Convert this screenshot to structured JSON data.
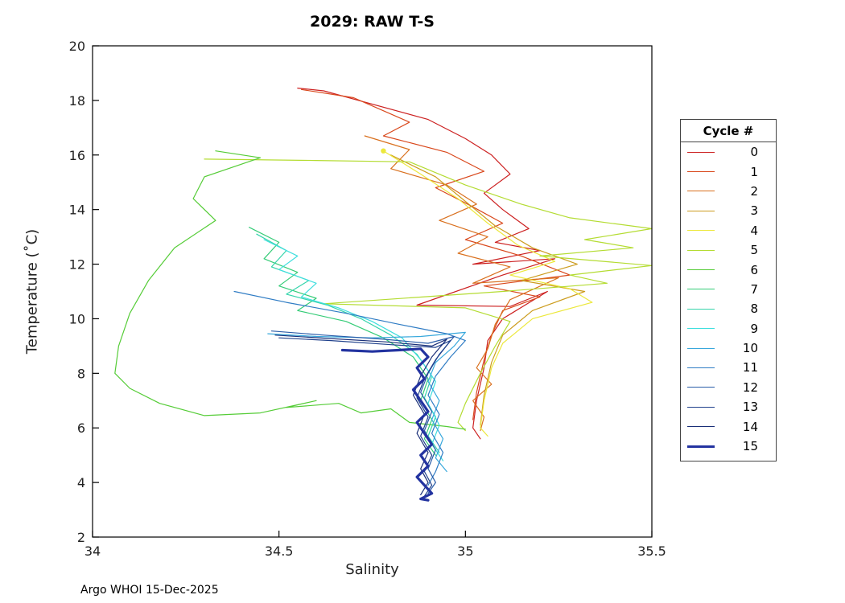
{
  "title": "2029: RAW T-S",
  "footer": "Argo WHOI 15-Dec-2025",
  "chart_data": {
    "type": "line",
    "title": "2029: RAW T-S",
    "xlabel": "Salinity",
    "ylabel": "Temperature (˚C)",
    "xlim": [
      34,
      35.5
    ],
    "ylim": [
      2,
      20
    ],
    "xticks": [
      34,
      34.5,
      35,
      35.5
    ],
    "yticks": [
      2,
      4,
      6,
      8,
      10,
      12,
      14,
      16,
      18,
      20
    ],
    "grid": false,
    "legend_title": "Cycle #",
    "legend_position": "right-outside",
    "axis_color": "#000000",
    "series": [
      {
        "name": "0",
        "color": "#cc2020",
        "width": 1.2,
        "points": [
          [
            34.55,
            18.45
          ],
          [
            34.62,
            18.35
          ],
          [
            34.9,
            17.3
          ],
          [
            35.0,
            16.6
          ],
          [
            35.07,
            16.0
          ],
          [
            35.12,
            15.3
          ],
          [
            35.05,
            14.6
          ],
          [
            35.1,
            14.0
          ],
          [
            35.17,
            13.3
          ],
          [
            35.08,
            12.8
          ],
          [
            35.2,
            12.5
          ],
          [
            35.02,
            12.0
          ],
          [
            35.24,
            12.2
          ],
          [
            35.1,
            11.6
          ],
          [
            34.87,
            10.5
          ],
          [
            35.12,
            10.45
          ],
          [
            35.22,
            11.0
          ],
          [
            35.1,
            10.0
          ],
          [
            35.06,
            9.2
          ],
          [
            35.05,
            8.2
          ],
          [
            35.03,
            7.0
          ],
          [
            35.02,
            6.0
          ],
          [
            35.04,
            5.6
          ]
        ]
      },
      {
        "name": "1",
        "color": "#d9481c",
        "width": 1.2,
        "points": [
          [
            34.56,
            18.4
          ],
          [
            34.7,
            18.1
          ],
          [
            34.85,
            17.2
          ],
          [
            34.78,
            16.7
          ],
          [
            34.95,
            16.1
          ],
          [
            35.05,
            15.4
          ],
          [
            34.92,
            14.8
          ],
          [
            35.02,
            14.1
          ],
          [
            35.1,
            13.5
          ],
          [
            35.0,
            12.9
          ],
          [
            35.15,
            12.3
          ],
          [
            35.28,
            11.6
          ],
          [
            35.05,
            11.2
          ],
          [
            35.2,
            10.8
          ],
          [
            35.1,
            10.3
          ],
          [
            35.07,
            9.4
          ],
          [
            35.05,
            8.5
          ],
          [
            35.03,
            7.3
          ],
          [
            35.02,
            6.3
          ]
        ]
      },
      {
        "name": "2",
        "color": "#d9701e",
        "width": 1.2,
        "points": [
          [
            34.73,
            16.7
          ],
          [
            34.85,
            16.2
          ],
          [
            34.8,
            15.5
          ],
          [
            34.95,
            14.9
          ],
          [
            35.03,
            14.2
          ],
          [
            34.93,
            13.6
          ],
          [
            35.06,
            13.0
          ],
          [
            34.98,
            12.4
          ],
          [
            35.12,
            11.9
          ],
          [
            35.02,
            11.3
          ],
          [
            35.25,
            11.5
          ],
          [
            35.12,
            10.7
          ],
          [
            35.08,
            9.8
          ],
          [
            35.06,
            8.9
          ],
          [
            35.03,
            8.2
          ],
          [
            35.07,
            7.6
          ],
          [
            35.02,
            7.0
          ],
          [
            35.05,
            6.4
          ],
          [
            35.04,
            5.9
          ]
        ]
      },
      {
        "name": "3",
        "color": "#cc9c1e",
        "width": 1.2,
        "points": [
          [
            34.8,
            16.0
          ],
          [
            34.92,
            15.2
          ],
          [
            35.0,
            14.3
          ],
          [
            35.08,
            13.4
          ],
          [
            35.18,
            12.6
          ],
          [
            35.3,
            12.0
          ],
          [
            35.15,
            11.4
          ],
          [
            35.32,
            11.0
          ],
          [
            35.18,
            10.3
          ],
          [
            35.1,
            9.4
          ],
          [
            35.07,
            8.4
          ],
          [
            35.05,
            7.2
          ],
          [
            35.04,
            6.1
          ]
        ]
      },
      {
        "name": "4",
        "color": "#ece83c",
        "width": 1.2,
        "marker": [
          34.78,
          16.15
        ],
        "points": [
          [
            34.78,
            16.15
          ],
          [
            34.88,
            15.3
          ],
          [
            34.98,
            14.4
          ],
          [
            35.06,
            13.5
          ],
          [
            35.14,
            12.7
          ],
          [
            35.24,
            12.1
          ],
          [
            35.12,
            11.6
          ],
          [
            35.28,
            11.1
          ],
          [
            35.34,
            10.6
          ],
          [
            35.18,
            10.0
          ],
          [
            35.1,
            9.1
          ],
          [
            35.07,
            8.2
          ],
          [
            35.05,
            7.0
          ],
          [
            35.04,
            6.0
          ],
          [
            35.06,
            5.7
          ]
        ]
      },
      {
        "name": "5",
        "color": "#b4dc32",
        "width": 1.2,
        "points": [
          [
            34.3,
            15.85
          ],
          [
            34.6,
            15.8
          ],
          [
            34.85,
            15.75
          ],
          [
            35.0,
            14.9
          ],
          [
            35.15,
            14.2
          ],
          [
            35.28,
            13.7
          ],
          [
            35.5,
            13.3
          ],
          [
            35.32,
            12.9
          ],
          [
            35.45,
            12.6
          ],
          [
            35.2,
            12.3
          ],
          [
            35.5,
            11.95
          ],
          [
            35.28,
            11.6
          ],
          [
            35.38,
            11.3
          ],
          [
            35.1,
            11.0
          ],
          [
            34.62,
            10.55
          ],
          [
            35.0,
            10.4
          ],
          [
            35.12,
            9.9
          ],
          [
            35.08,
            9.0
          ],
          [
            35.04,
            8.0
          ],
          [
            35.0,
            6.9
          ],
          [
            34.98,
            6.2
          ],
          [
            35.0,
            5.9
          ]
        ]
      },
      {
        "name": "6",
        "color": "#55cc37",
        "width": 1.2,
        "points": [
          [
            34.33,
            16.15
          ],
          [
            34.45,
            15.9
          ],
          [
            34.3,
            15.2
          ],
          [
            34.27,
            14.4
          ],
          [
            34.33,
            13.6
          ],
          [
            34.22,
            12.6
          ],
          [
            34.15,
            11.4
          ],
          [
            34.1,
            10.2
          ],
          [
            34.07,
            9.0
          ],
          [
            34.06,
            8.0
          ],
          [
            34.1,
            7.45
          ],
          [
            34.18,
            6.9
          ],
          [
            34.3,
            6.45
          ],
          [
            34.45,
            6.55
          ],
          [
            34.6,
            7.0
          ],
          [
            34.52,
            6.75
          ],
          [
            34.66,
            6.9
          ],
          [
            34.72,
            6.55
          ],
          [
            34.8,
            6.7
          ],
          [
            34.85,
            6.2
          ],
          [
            34.95,
            6.05
          ],
          [
            35.0,
            5.95
          ]
        ]
      },
      {
        "name": "7",
        "color": "#35cc77",
        "width": 1.2,
        "points": [
          [
            34.42,
            13.35
          ],
          [
            34.5,
            12.8
          ],
          [
            34.46,
            12.2
          ],
          [
            34.55,
            11.7
          ],
          [
            34.5,
            11.2
          ],
          [
            34.6,
            10.75
          ],
          [
            34.55,
            10.3
          ],
          [
            34.68,
            9.9
          ],
          [
            34.78,
            9.3
          ],
          [
            34.86,
            8.6
          ],
          [
            34.9,
            7.8
          ],
          [
            34.88,
            7.0
          ],
          [
            34.91,
            6.3
          ],
          [
            34.89,
            5.6
          ],
          [
            34.92,
            5.0
          ]
        ]
      },
      {
        "name": "8",
        "color": "#35d4ab",
        "width": 1.2,
        "points": [
          [
            34.44,
            13.1
          ],
          [
            34.52,
            12.5
          ],
          [
            34.48,
            11.9
          ],
          [
            34.58,
            11.4
          ],
          [
            34.52,
            10.9
          ],
          [
            34.63,
            10.5
          ],
          [
            34.72,
            10.0
          ],
          [
            34.8,
            9.4
          ],
          [
            34.87,
            8.7
          ],
          [
            34.91,
            7.9
          ],
          [
            34.89,
            7.1
          ],
          [
            34.92,
            6.4
          ],
          [
            34.9,
            5.7
          ],
          [
            34.93,
            5.1
          ]
        ]
      },
      {
        "name": "9",
        "color": "#3fdede",
        "width": 1.2,
        "points": [
          [
            34.46,
            12.9
          ],
          [
            34.55,
            12.3
          ],
          [
            34.5,
            11.8
          ],
          [
            34.6,
            11.3
          ],
          [
            34.56,
            10.8
          ],
          [
            34.66,
            10.4
          ],
          [
            34.75,
            9.9
          ],
          [
            34.83,
            9.3
          ],
          [
            34.88,
            8.5
          ],
          [
            34.92,
            7.7
          ],
          [
            34.9,
            6.9
          ],
          [
            34.93,
            6.1
          ],
          [
            34.91,
            5.4
          ],
          [
            34.94,
            4.8
          ]
        ]
      },
      {
        "name": "10",
        "color": "#38a8dc",
        "width": 1.2,
        "points": [
          [
            34.47,
            9.45
          ],
          [
            34.6,
            9.35
          ],
          [
            34.75,
            9.3
          ],
          [
            34.88,
            9.35
          ],
          [
            35.0,
            9.5
          ],
          [
            34.97,
            9.0
          ],
          [
            34.92,
            8.4
          ],
          [
            34.9,
            7.7
          ],
          [
            34.93,
            7.0
          ],
          [
            34.91,
            6.3
          ],
          [
            34.94,
            5.6
          ],
          [
            34.92,
            4.9
          ],
          [
            34.95,
            4.4
          ]
        ]
      },
      {
        "name": "11",
        "color": "#2f7cc4",
        "width": 1.2,
        "points": [
          [
            34.38,
            11.0
          ],
          [
            34.52,
            10.6
          ],
          [
            34.68,
            10.2
          ],
          [
            34.82,
            9.8
          ],
          [
            34.95,
            9.45
          ],
          [
            35.0,
            9.2
          ],
          [
            34.96,
            8.6
          ],
          [
            34.92,
            7.9
          ],
          [
            34.9,
            7.2
          ],
          [
            34.93,
            6.5
          ],
          [
            34.91,
            5.8
          ],
          [
            34.94,
            5.1
          ],
          [
            34.92,
            4.4
          ],
          [
            34.9,
            3.9
          ]
        ]
      },
      {
        "name": "12",
        "color": "#2a5ca8",
        "width": 1.2,
        "points": [
          [
            34.48,
            9.55
          ],
          [
            34.62,
            9.4
          ],
          [
            34.78,
            9.25
          ],
          [
            34.9,
            9.1
          ],
          [
            34.97,
            9.35
          ],
          [
            34.93,
            8.7
          ],
          [
            34.9,
            8.0
          ],
          [
            34.88,
            7.3
          ],
          [
            34.91,
            6.6
          ],
          [
            34.89,
            5.9
          ],
          [
            34.92,
            5.2
          ],
          [
            34.9,
            4.5
          ],
          [
            34.92,
            4.0
          ],
          [
            34.9,
            3.6
          ]
        ]
      },
      {
        "name": "13",
        "color": "#20418c",
        "width": 1.2,
        "points": [
          [
            34.5,
            9.3
          ],
          [
            34.64,
            9.2
          ],
          [
            34.8,
            9.05
          ],
          [
            34.92,
            8.95
          ],
          [
            34.96,
            9.2
          ],
          [
            34.92,
            8.5
          ],
          [
            34.89,
            7.8
          ],
          [
            34.87,
            7.1
          ],
          [
            34.9,
            6.4
          ],
          [
            34.88,
            5.7
          ],
          [
            34.91,
            5.0
          ],
          [
            34.89,
            4.4
          ],
          [
            34.91,
            3.9
          ],
          [
            34.89,
            3.5
          ]
        ]
      },
      {
        "name": "14",
        "color": "#1a2f78",
        "width": 1.2,
        "points": [
          [
            34.49,
            9.4
          ],
          [
            34.63,
            9.28
          ],
          [
            34.79,
            9.15
          ],
          [
            34.91,
            9.0
          ],
          [
            34.95,
            9.25
          ],
          [
            34.91,
            8.6
          ],
          [
            34.88,
            7.9
          ],
          [
            34.86,
            7.2
          ],
          [
            34.89,
            6.5
          ],
          [
            34.87,
            5.8
          ],
          [
            34.9,
            5.1
          ],
          [
            34.88,
            4.5
          ],
          [
            34.9,
            4.0
          ],
          [
            34.88,
            3.55
          ]
        ]
      },
      {
        "name": "15",
        "color": "#2333a0",
        "width": 3.2,
        "points": [
          [
            34.67,
            8.85
          ],
          [
            34.75,
            8.8
          ],
          [
            34.82,
            8.85
          ],
          [
            34.88,
            8.9
          ],
          [
            34.9,
            8.6
          ],
          [
            34.87,
            8.2
          ],
          [
            34.89,
            7.8
          ],
          [
            34.86,
            7.4
          ],
          [
            34.88,
            7.0
          ],
          [
            34.9,
            6.6
          ],
          [
            34.87,
            6.2
          ],
          [
            34.89,
            5.8
          ],
          [
            34.91,
            5.4
          ],
          [
            34.88,
            5.0
          ],
          [
            34.9,
            4.6
          ],
          [
            34.87,
            4.2
          ],
          [
            34.89,
            3.9
          ],
          [
            34.91,
            3.6
          ],
          [
            34.88,
            3.4
          ],
          [
            34.9,
            3.35
          ]
        ]
      }
    ]
  }
}
